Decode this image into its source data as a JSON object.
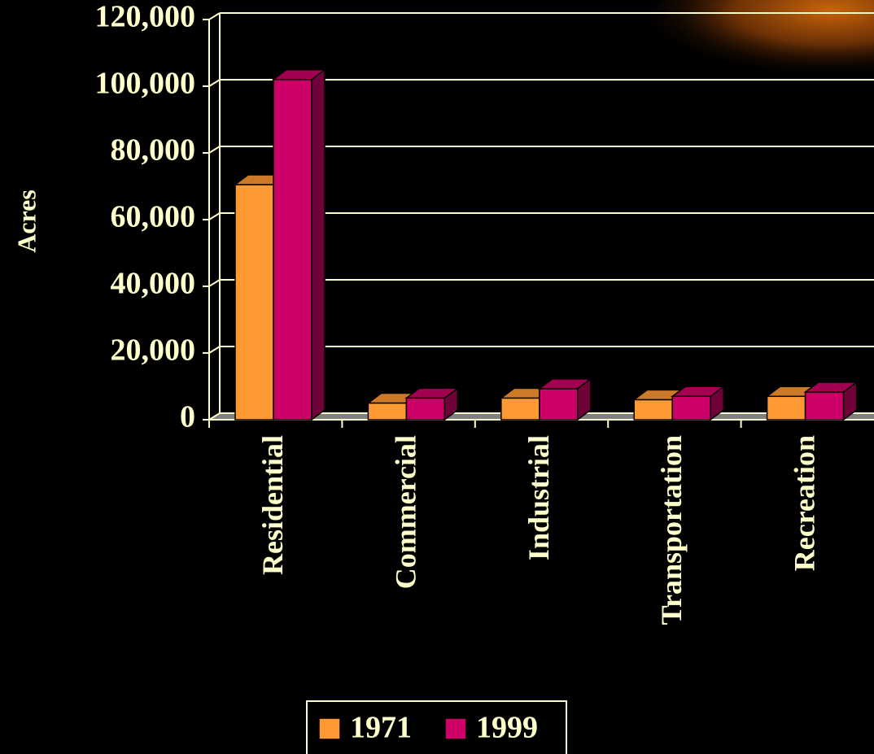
{
  "chart_data": {
    "type": "bar",
    "y_label": "Acres",
    "categories": [
      "Residential",
      "Commercial",
      "Industrial",
      "Transportation",
      "Recreation"
    ],
    "series": [
      {
        "name": "1971",
        "color": "#ff9933",
        "values": [
          70500,
          5000,
          6500,
          6000,
          7000
        ]
      },
      {
        "name": "1999",
        "color": "#cc0066",
        "values": [
          102000,
          6500,
          9300,
          7000,
          8300
        ]
      }
    ],
    "ylim": [
      0,
      120000
    ],
    "yticks": [
      {
        "value": 0,
        "label": "0"
      },
      {
        "value": 20000,
        "label": "20,000"
      },
      {
        "value": 40000,
        "label": "40,000"
      },
      {
        "value": 60000,
        "label": "60,000"
      },
      {
        "value": 80000,
        "label": "80,000"
      },
      {
        "value": 100000,
        "label": "100,000"
      },
      {
        "value": 120000,
        "label": "120,000"
      }
    ],
    "grid": true
  }
}
